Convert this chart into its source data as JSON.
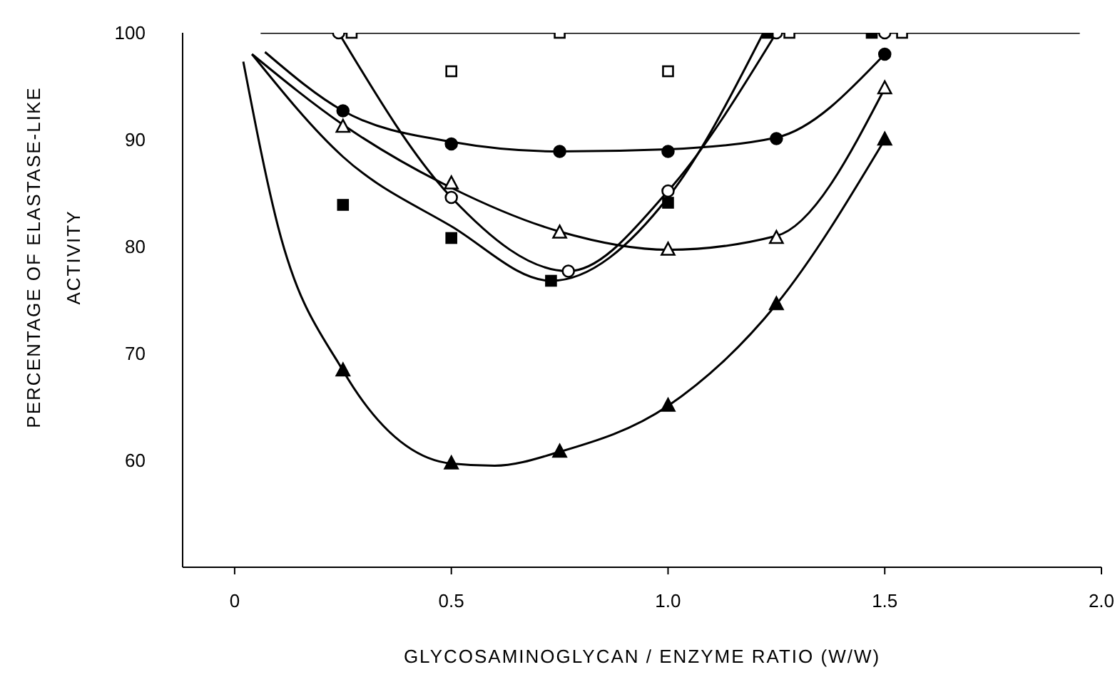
{
  "chart_data": {
    "type": "scatter",
    "xlabel": "GLYCOSAMINOGLYCAN / ENZYME RATIO (W/W)",
    "ylabel": "PERCENTAGE OF ELASTASE-LIKE ACTIVITY",
    "xlim": [
      -0.12,
      2.0
    ],
    "xticks": [
      0,
      0.5,
      {
        "value": 1.0,
        "label": "1.0"
      },
      1.5,
      {
        "value": 2.0,
        "label": "2.0"
      }
    ],
    "ylim": [
      50,
      100
    ],
    "yticks": [
      60,
      70,
      80,
      90,
      100
    ],
    "grid": false,
    "series": [
      {
        "type": "line",
        "color": "#000000",
        "marker": "none",
        "x": [
          0.06,
          1.95
        ],
        "values": [
          100,
          100
        ]
      },
      {
        "type": "line",
        "color": "#000000",
        "marker": "none",
        "x": [
          0.24,
          0.5,
          0.77,
          1.0,
          1.25
        ],
        "values": [
          100,
          84.6,
          77.7,
          85.2,
          100
        ]
      },
      {
        "type": "line",
        "color": "#000000",
        "marker": "none",
        "x": [
          0.07,
          0.25,
          0.5,
          0.75,
          1.0,
          1.25,
          1.5
        ],
        "values": [
          98.2,
          92.7,
          89.8,
          88.9,
          89.1,
          90.2,
          98.0
        ]
      },
      {
        "type": "line",
        "color": "#000000",
        "marker": "none",
        "x": [
          0.04,
          0.25,
          0.5,
          0.75,
          1.0,
          1.25,
          1.5
        ],
        "values": [
          98.0,
          91.4,
          85.5,
          81.4,
          79.7,
          81.0,
          94.8
        ]
      },
      {
        "type": "line",
        "color": "#000000",
        "marker": "none",
        "x": [
          0.04,
          0.25,
          0.5,
          0.73,
          1.0,
          1.22
        ],
        "values": [
          98.0,
          88.4,
          81.9,
          76.8,
          84.6,
          100
        ]
      },
      {
        "type": "line",
        "color": "#000000",
        "marker": "none",
        "x": [
          0.02,
          0.1,
          0.25,
          0.5,
          0.6,
          0.75,
          1.0,
          1.25,
          1.5
        ],
        "values": [
          97.3,
          81.9,
          68.4,
          59.7,
          59.5,
          60.8,
          65.1,
          74.6,
          90.0
        ]
      },
      {
        "color": "#ffffff",
        "marker": "square",
        "x": [
          0.27,
          0.5,
          0.75,
          1.0,
          1.28,
          1.54
        ],
        "values": [
          100,
          96.4,
          100,
          96.4,
          100,
          100
        ]
      },
      {
        "color": "#ffffff",
        "marker": "circle",
        "x": [
          0.24,
          0.5,
          0.77,
          1.0,
          1.25,
          1.5
        ],
        "values": [
          100,
          84.6,
          77.7,
          85.2,
          100,
          100
        ]
      },
      {
        "color": "#000000",
        "marker": "circle",
        "x": [
          0.25,
          0.5,
          0.75,
          1.0,
          1.25,
          1.5
        ],
        "values": [
          92.7,
          89.6,
          88.9,
          88.9,
          90.1,
          98.0
        ]
      },
      {
        "color": "#ffffff",
        "marker": "triangle",
        "x": [
          0.25,
          0.5,
          0.75,
          1.0,
          1.25,
          1.5
        ],
        "values": [
          91.2,
          85.9,
          81.3,
          79.7,
          80.8,
          94.8
        ]
      },
      {
        "color": "#000000",
        "marker": "square",
        "x": [
          0.25,
          0.5,
          0.73,
          1.0,
          1.23,
          1.47
        ],
        "values": [
          83.9,
          80.8,
          76.8,
          84.1,
          100,
          100
        ]
      },
      {
        "color": "#000000",
        "marker": "triangle",
        "x": [
          0.25,
          0.5,
          0.75,
          1.0,
          1.25,
          1.5
        ],
        "values": [
          68.4,
          59.7,
          60.8,
          65.1,
          74.6,
          90.0
        ]
      }
    ]
  }
}
